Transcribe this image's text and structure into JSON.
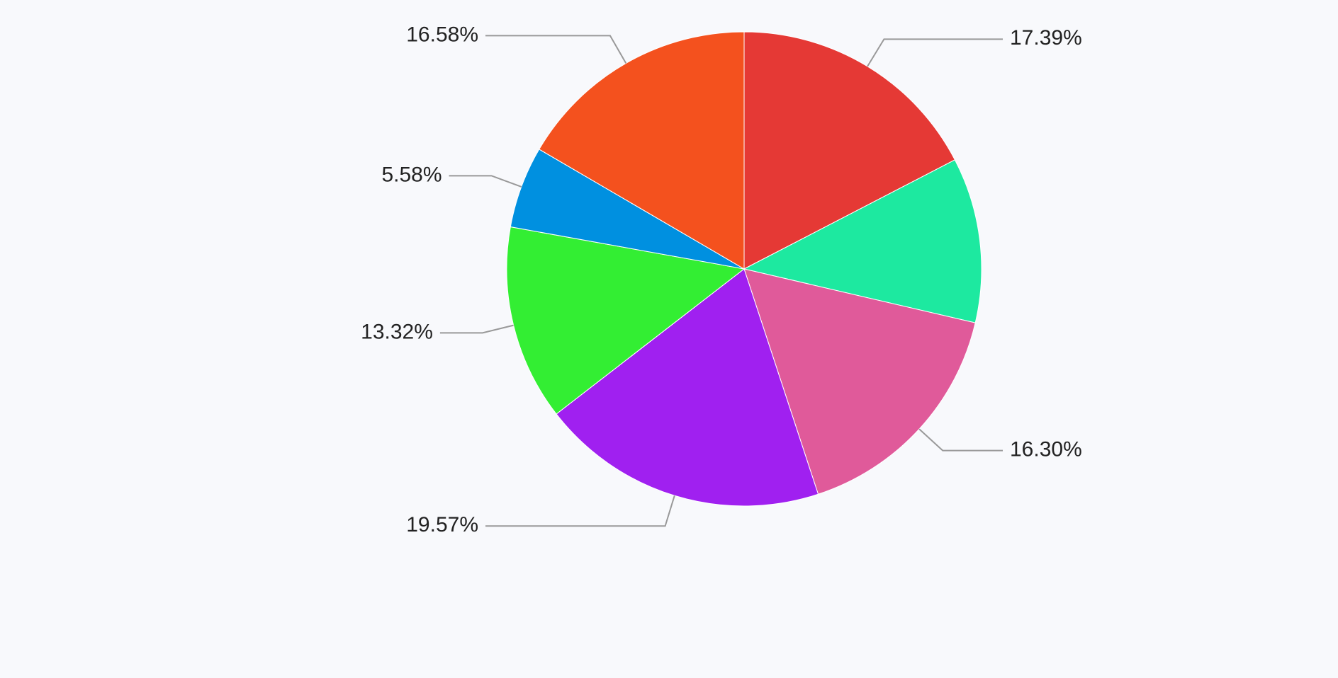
{
  "chart_data": {
    "type": "pie",
    "series": [
      {
        "values": [
          17.39,
          11.26,
          16.3,
          19.57,
          13.32,
          5.58,
          16.58
        ],
        "value_labels": [
          "17.39%",
          null,
          "16.30%",
          "19.57%",
          "13.32%",
          "5.58%",
          "16.58%"
        ],
        "colors": [
          "#e53935",
          "#1de9a0",
          "#e05a9a",
          "#a020f0",
          "#33ee33",
          "#0090e0",
          "#f4511e"
        ]
      }
    ]
  }
}
